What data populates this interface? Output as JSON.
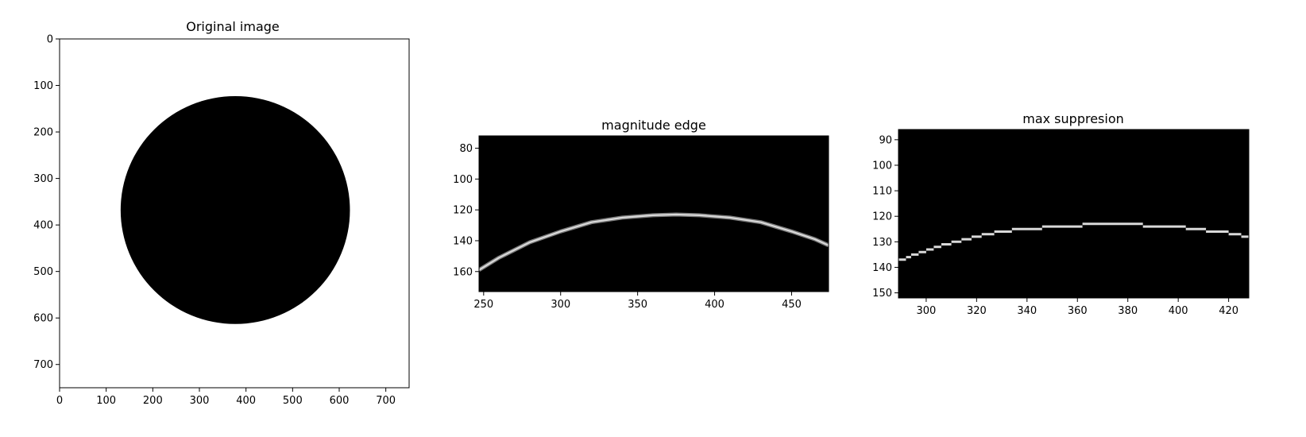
{
  "chart_data": [
    {
      "type": "heatmap",
      "title": "Original image",
      "xlim": [
        0,
        750
      ],
      "ylim": [
        750,
        0
      ],
      "xticks": [
        0,
        100,
        200,
        300,
        400,
        500,
        600,
        700
      ],
      "yticks": [
        0,
        100,
        200,
        300,
        400,
        500,
        600,
        700
      ],
      "colormap": "gray",
      "background": "#ffffff",
      "foreground": "#000000",
      "shape": "filled circle",
      "circle": {
        "cx": 377,
        "cy": 368,
        "rx": 246,
        "ry": 245
      }
    },
    {
      "type": "heatmap",
      "title": "magnitude edge",
      "xlim": [
        247,
        474
      ],
      "ylim": [
        173,
        72
      ],
      "xticks": [
        250,
        300,
        350,
        400,
        450
      ],
      "yticks": [
        80,
        100,
        120,
        140,
        160
      ],
      "colormap": "gray",
      "background": "#000000",
      "edge_color": "#d9d9d9",
      "edge_points": [
        [
          247,
          159
        ],
        [
          260,
          151
        ],
        [
          280,
          141
        ],
        [
          300,
          134
        ],
        [
          320,
          128
        ],
        [
          340,
          125
        ],
        [
          360,
          123.5
        ],
        [
          375,
          123
        ],
        [
          390,
          123.5
        ],
        [
          410,
          125
        ],
        [
          430,
          128
        ],
        [
          450,
          134
        ],
        [
          465,
          139
        ],
        [
          474,
          143
        ]
      ]
    },
    {
      "type": "heatmap",
      "title": "max suppresion",
      "xlim": [
        289,
        428
      ],
      "ylim": [
        152,
        86
      ],
      "xticks": [
        300,
        320,
        340,
        360,
        380,
        400,
        420
      ],
      "yticks": [
        90,
        100,
        110,
        120,
        130,
        140,
        150
      ],
      "colormap": "gray",
      "background": "#000000",
      "edge_color": "#d9d9d9",
      "edge_points": [
        [
          289,
          137
        ],
        [
          292,
          136
        ],
        [
          294,
          135
        ],
        [
          297,
          134
        ],
        [
          300,
          133
        ],
        [
          303,
          132
        ],
        [
          306,
          131
        ],
        [
          310,
          130
        ],
        [
          314,
          129
        ],
        [
          318,
          128
        ],
        [
          322,
          127
        ],
        [
          327,
          126
        ],
        [
          334,
          125
        ],
        [
          346,
          124
        ],
        [
          362,
          123
        ],
        [
          386,
          124
        ],
        [
          403,
          125
        ],
        [
          411,
          126
        ],
        [
          420,
          127
        ],
        [
          425,
          128
        ],
        [
          428,
          128
        ]
      ]
    }
  ]
}
